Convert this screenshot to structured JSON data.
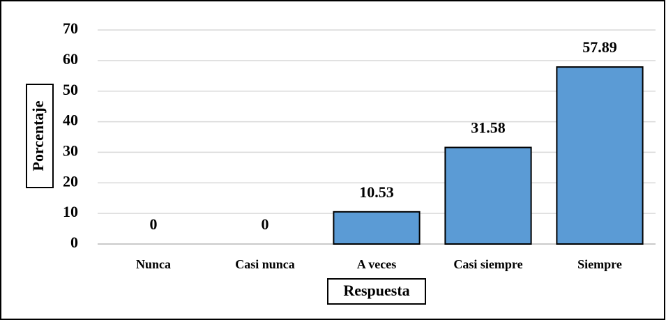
{
  "chart_data": {
    "type": "bar",
    "x_label": "Respuesta",
    "y_label": "Porcentaje",
    "categories": [
      "Nunca",
      "Casi nunca",
      "A veces",
      "Casi siempre",
      "Siempre"
    ],
    "values": [
      0,
      0,
      10.53,
      31.58,
      57.89
    ],
    "color": "#5b9bd5",
    "ylim": [
      0,
      70
    ],
    "yticks": [
      0,
      10,
      20,
      30,
      40,
      50,
      60,
      70
    ],
    "grid": true
  }
}
